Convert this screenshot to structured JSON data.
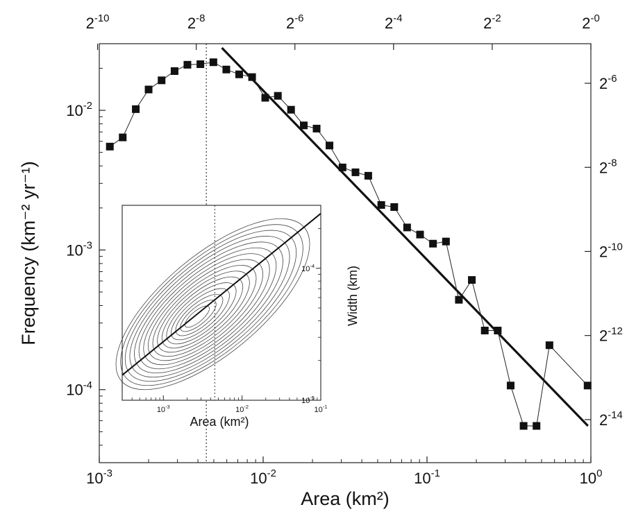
{
  "chart_data": [
    {
      "type": "line",
      "title": "",
      "xlabel": "Area (km²)",
      "ylabel": "Frequency (km⁻² yr⁻¹)",
      "xscale": "log",
      "yscale": "log",
      "xlim": [
        0.001,
        1
      ],
      "ylim": [
        3e-05,
        0.03
      ],
      "xticks": [
        {
          "value": 0.001,
          "base": "10",
          "exp": "-3"
        },
        {
          "value": 0.01,
          "base": "10",
          "exp": "-2"
        },
        {
          "value": 0.1,
          "base": "10",
          "exp": "-1"
        },
        {
          "value": 1,
          "base": "10",
          "exp": "0"
        }
      ],
      "yticks": [
        {
          "value": 0.01,
          "base": "10",
          "exp": "-2"
        },
        {
          "value": 0.001,
          "base": "10",
          "exp": "-3"
        },
        {
          "value": 0.0001,
          "base": "10",
          "exp": "-4"
        }
      ],
      "top_axis": {
        "scale": "log2",
        "ticks": [
          {
            "value": 0.0009765625,
            "base": "2",
            "exp": "-10"
          },
          {
            "value": 0.00390625,
            "base": "2",
            "exp": "-8"
          },
          {
            "value": 0.015625,
            "base": "2",
            "exp": "-6"
          },
          {
            "value": 0.0625,
            "base": "2",
            "exp": "-4"
          },
          {
            "value": 0.25,
            "base": "2",
            "exp": "-2"
          },
          {
            "value": 1,
            "base": "2",
            "exp": "-0"
          }
        ]
      },
      "right_axis": {
        "scale": "log2",
        "ticks": [
          {
            "value": 0.015625,
            "base": "2",
            "exp": "-6"
          },
          {
            "value": 0.00390625,
            "base": "2",
            "exp": "-8"
          },
          {
            "value": 0.0009765625,
            "base": "2",
            "exp": "-10"
          },
          {
            "value": 0.000244140625,
            "base": "2",
            "exp": "-12"
          },
          {
            "value": 6.103515625e-05,
            "base": "2",
            "exp": "-14"
          }
        ]
      },
      "series": [
        {
          "marker": "square",
          "x": [
            0.00116,
            0.00139,
            0.00167,
            0.002,
            0.0024,
            0.00288,
            0.00345,
            0.00414,
            0.00497,
            0.00596,
            0.00714,
            0.00856,
            0.0103,
            0.0123,
            0.0148,
            0.0177,
            0.0212,
            0.0254,
            0.0305,
            0.0366,
            0.0438,
            0.0526,
            0.0631,
            0.0756,
            0.0907,
            0.1088,
            0.1305,
            0.1565,
            0.1877,
            0.2252,
            0.2701,
            0.3239,
            0.3885,
            0.4659,
            0.5588,
            0.9551
          ],
          "y": [
            0.0055,
            0.0064,
            0.0102,
            0.0141,
            0.0164,
            0.0191,
            0.0212,
            0.0214,
            0.0221,
            0.0196,
            0.0181,
            0.0173,
            0.0123,
            0.0127,
            0.0101,
            0.0078,
            0.0074,
            0.0056,
            0.0039,
            0.0036,
            0.0034,
            0.0021,
            0.00203,
            0.00145,
            0.00129,
            0.00111,
            0.00115,
            0.00044,
            0.00061,
            0.000265,
            0.000265,
            0.000107,
            5.5e-05,
            5.5e-05,
            0.000208,
            0.000107
          ]
        }
      ],
      "fit_line": {
        "x": [
          0.0056,
          0.96
        ],
        "y": [
          0.028,
          5.5e-05
        ]
      },
      "reference_line": {
        "x": 0.0045,
        "style": "dotted"
      }
    },
    {
      "type": "scatter",
      "title": "",
      "xlabel": "Area (km²)",
      "ylabel": "Width (km)",
      "xscale": "log",
      "yscale": "log",
      "xlim": [
        0.0003,
        0.1
      ],
      "ylim": [
        1e-05,
        0.0003
      ],
      "xticks": [
        {
          "value": 0.001,
          "base": "10",
          "exp": "-3"
        },
        {
          "value": 0.01,
          "base": "10",
          "exp": "-2"
        },
        {
          "value": 0.1,
          "base": "10",
          "exp": "-1"
        }
      ],
      "yticks": [
        {
          "value": 0.0001,
          "base": "10",
          "exp": "-4"
        },
        {
          "value": 1e-05,
          "base": "10",
          "exp": "-5"
        }
      ],
      "overlay": "density contours",
      "fit_line": {
        "x": [
          0.0003,
          0.1
        ],
        "y": [
          1.55e-05,
          0.00026
        ]
      },
      "reference_line": {
        "x": 0.0045,
        "style": "dotted"
      }
    }
  ]
}
